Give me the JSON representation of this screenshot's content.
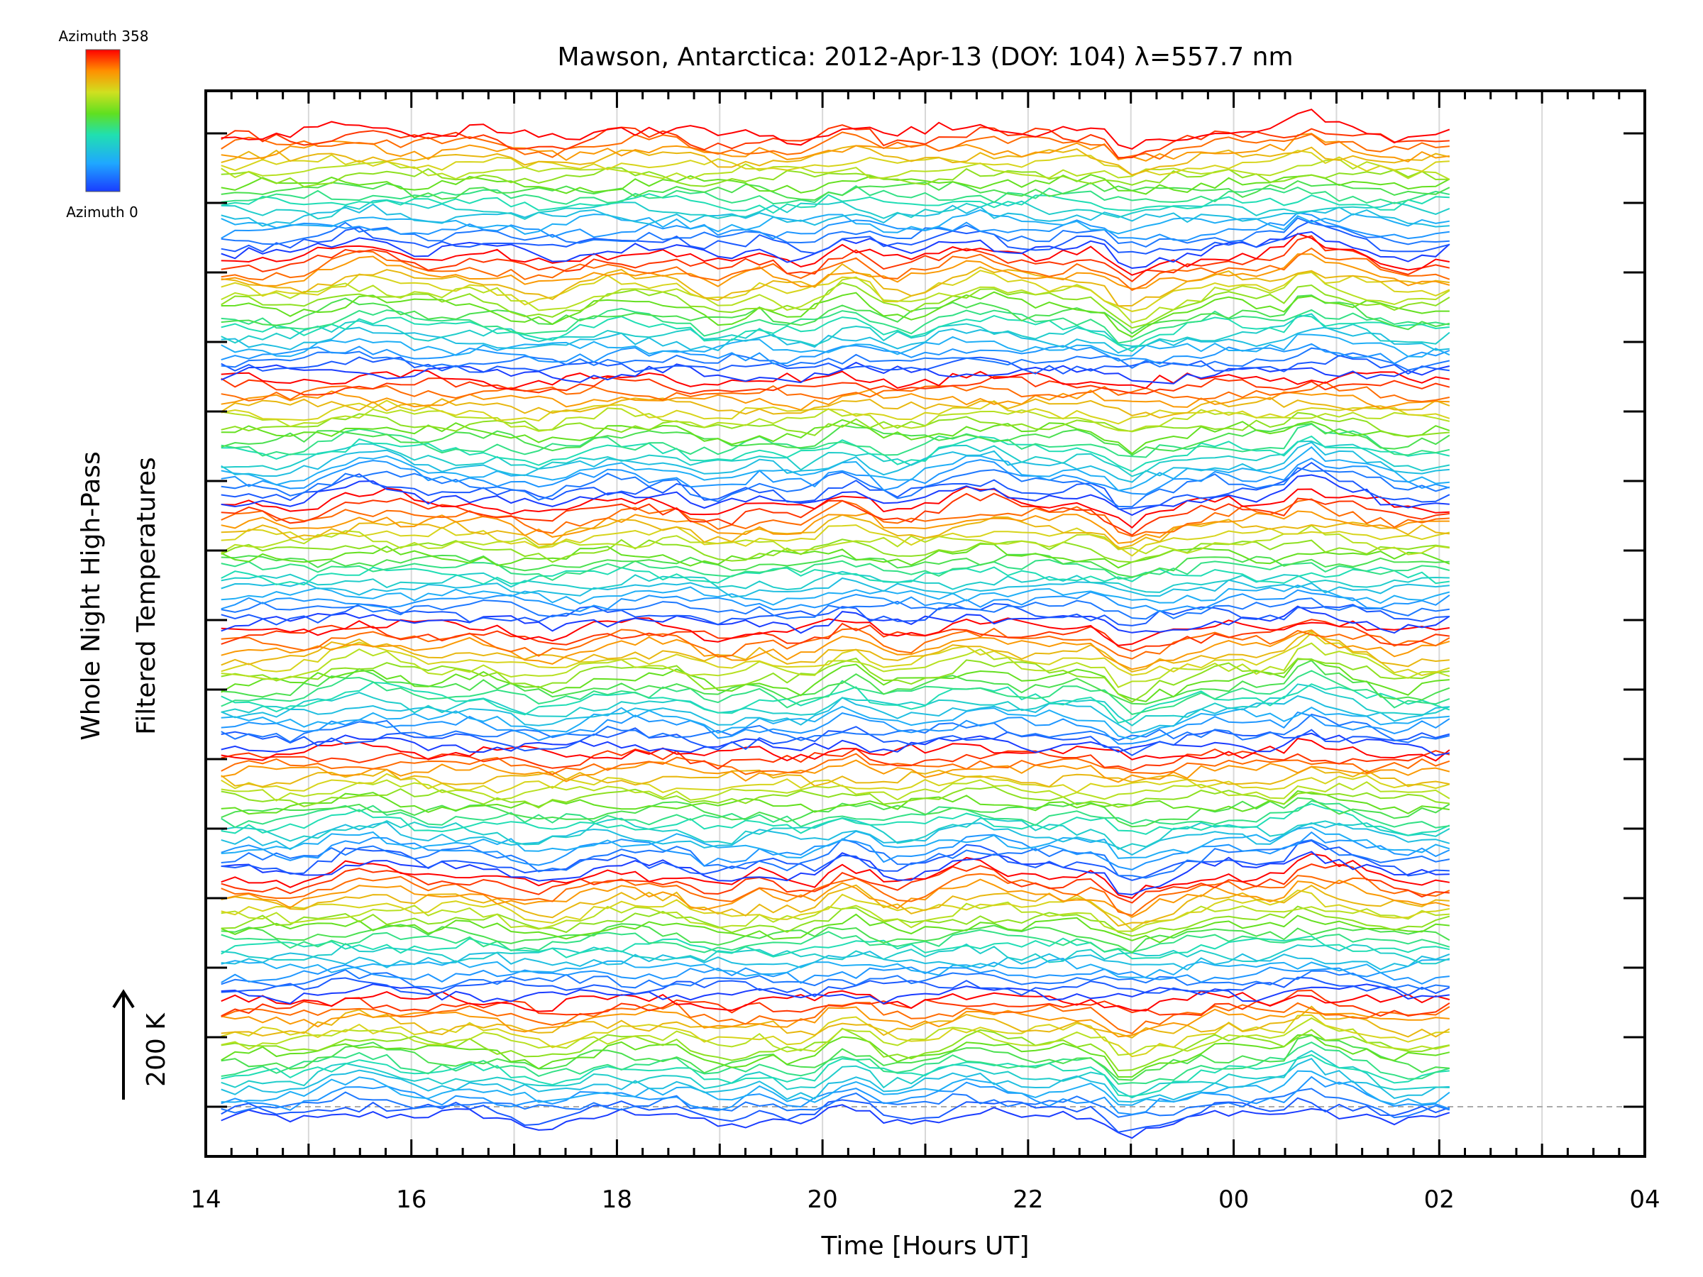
{
  "chart_data": {
    "type": "line",
    "title": "Mawson, Antarctica: 2012-Apr-13 (DOY: 104) λ=557.7 nm",
    "xlabel": "Time [Hours UT]",
    "ylabel_line1": "Whole Night High-Pass",
    "ylabel_line2": "Filtered Temperatures",
    "scale_bar_label": "200 K",
    "legend": {
      "top_label": "Azimuth 358",
      "bottom_label": "Azimuth 0",
      "colormap": "rainbow (blue to red)",
      "placement": "top-left"
    },
    "x_ticks": [
      "14",
      "16",
      "18",
      "20",
      "22",
      "00",
      "02",
      "04"
    ],
    "x_range_hours": [
      14,
      28
    ],
    "data_range_hours": [
      14.15,
      26.1
    ],
    "line_count": 152,
    "line_colors": [
      "#1a3cff",
      "#1fa8ff",
      "#20e0d0",
      "#40e020",
      "#c0e020",
      "#f0c000",
      "#ff6000",
      "#ff0000"
    ],
    "grid": "vertical lines each hour",
    "baseline": "dashed"
  }
}
